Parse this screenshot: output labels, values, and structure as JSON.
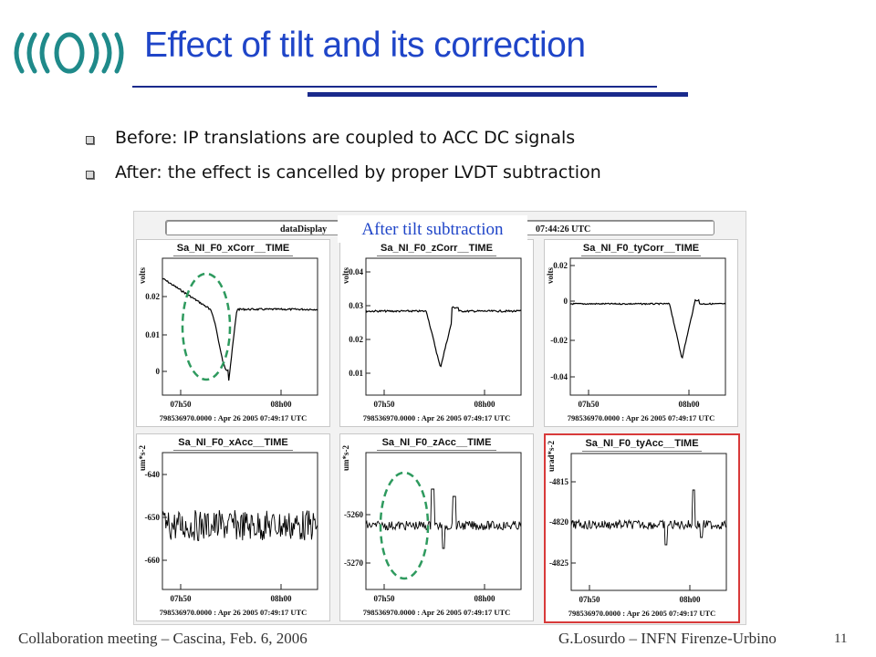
{
  "slide": {
    "title": "Effect of tilt and its correction",
    "bullets": [
      "Before: IP translations are coupled to ACC DC signals",
      "After: the effect is cancelled by proper LVDT subtraction"
    ],
    "overlay_label": "After tilt subtraction"
  },
  "display": {
    "bar_label": "dataDisplay",
    "bar_time": "07:44:26 UTC",
    "timestamp": "798536970.0000 : Apr 26 2005 07:49:17 UTC",
    "x_ticks": [
      "07h50",
      "08h00"
    ]
  },
  "colors": {
    "title": "#1f45c8",
    "rule": "#1a2a8c",
    "highlight_border": "#d83a3a",
    "ellipse": "#2e9a5e",
    "trace": "#000000"
  },
  "panels": [
    {
      "title": "Sa_NI_F0_xCorr__TIME",
      "unit": "volts",
      "ticks": [
        "0.02",
        "0.01",
        "0"
      ],
      "highlight": false,
      "ellipse": true
    },
    {
      "title": "Sa_NI_F0_zCorr__TIME",
      "unit": "volts",
      "ticks": [
        "0.04",
        "0.03",
        "0.02",
        "0.01"
      ],
      "highlight": false,
      "ellipse": false
    },
    {
      "title": "Sa_NI_F0_tyCorr__TIME",
      "unit": "volts",
      "ticks": [
        "0.02",
        "0",
        "-0.02",
        "-0.04"
      ],
      "highlight": false,
      "ellipse": false
    },
    {
      "title": "Sa_NI_F0_xAcc__TIME",
      "unit": "um*s-2",
      "ticks": [
        "-640",
        "-650",
        "-660"
      ],
      "highlight": false,
      "ellipse": false
    },
    {
      "title": "Sa_NI_F0_zAcc__TIME",
      "unit": "um*s-2",
      "ticks": [
        "-5260",
        "-5270"
      ],
      "highlight": false,
      "ellipse": true
    },
    {
      "title": "Sa_NI_F0_tyAcc__TIME",
      "unit": "urad*s-2",
      "ticks": [
        "-4815",
        "-4820",
        "-4825"
      ],
      "highlight": true,
      "ellipse": false
    }
  ],
  "footer": {
    "left": "Collaboration meeting – Cascina, Feb. 6, 2006",
    "right": "G.Losurdo – INFN Firenze-Urbino",
    "page": "11"
  }
}
